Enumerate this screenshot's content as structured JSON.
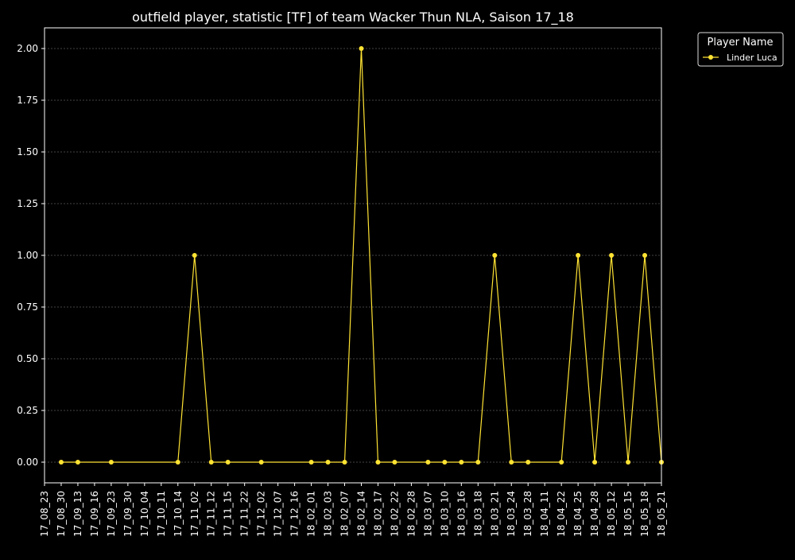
{
  "chart_data": {
    "type": "line",
    "title": "outfield player, statistic [TF] of team Wacker Thun NLA, Saison 17_18",
    "xlabel": "",
    "ylabel": "",
    "categories": [
      "17_08_23",
      "17_08_30",
      "17_09_13",
      "17_09_16",
      "17_09_23",
      "17_09_30",
      "17_10_04",
      "17_10_11",
      "17_10_14",
      "17_11_02",
      "17_11_12",
      "17_11_15",
      "17_11_22",
      "17_12_02",
      "17_12_07",
      "17_12_16",
      "18_02_01",
      "18_02_03",
      "18_02_07",
      "18_02_14",
      "18_02_17",
      "18_02_22",
      "18_02_28",
      "18_03_07",
      "18_03_10",
      "18_03_16",
      "18_03_18",
      "18_03_21",
      "18_03_24",
      "18_03_28",
      "18_04_11",
      "18_04_22",
      "18_04_25",
      "18_04_28",
      "18_05_12",
      "18_05_15",
      "18_05_18",
      "18_05_21"
    ],
    "ylim": [
      -0.1,
      2.1
    ],
    "yticks": [
      0.0,
      0.25,
      0.5,
      0.75,
      1.0,
      1.25,
      1.5,
      1.75,
      2.0
    ],
    "ytick_labels": [
      "0.00",
      "0.25",
      "0.50",
      "0.75",
      "1.00",
      "1.25",
      "1.50",
      "1.75",
      "2.00"
    ],
    "grid": true,
    "legend": {
      "title": "Player Name",
      "placement": "outside top-right"
    },
    "series": [
      {
        "name": "Linder Luca",
        "color": "#ffe333",
        "points": [
          {
            "x": "17_08_30",
            "y": 0
          },
          {
            "x": "17_09_13",
            "y": 0
          },
          {
            "x": "17_09_23",
            "y": 0
          },
          {
            "x": "17_10_14",
            "y": 0
          },
          {
            "x": "17_11_02",
            "y": 1
          },
          {
            "x": "17_11_12",
            "y": 0
          },
          {
            "x": "17_11_15",
            "y": 0
          },
          {
            "x": "17_12_02",
            "y": 0
          },
          {
            "x": "18_02_01",
            "y": 0
          },
          {
            "x": "18_02_03",
            "y": 0
          },
          {
            "x": "18_02_07",
            "y": 0
          },
          {
            "x": "18_02_14",
            "y": 2
          },
          {
            "x": "18_02_17",
            "y": 0
          },
          {
            "x": "18_02_22",
            "y": 0
          },
          {
            "x": "18_03_07",
            "y": 0
          },
          {
            "x": "18_03_10",
            "y": 0
          },
          {
            "x": "18_03_16",
            "y": 0
          },
          {
            "x": "18_03_18",
            "y": 0
          },
          {
            "x": "18_03_21",
            "y": 1
          },
          {
            "x": "18_03_24",
            "y": 0
          },
          {
            "x": "18_03_28",
            "y": 0
          },
          {
            "x": "18_04_22",
            "y": 0
          },
          {
            "x": "18_04_25",
            "y": 1
          },
          {
            "x": "18_04_28",
            "y": 0
          },
          {
            "x": "18_05_12",
            "y": 1
          },
          {
            "x": "18_05_15",
            "y": 0
          },
          {
            "x": "18_05_18",
            "y": 1
          },
          {
            "x": "18_05_21",
            "y": 0
          }
        ]
      }
    ]
  }
}
